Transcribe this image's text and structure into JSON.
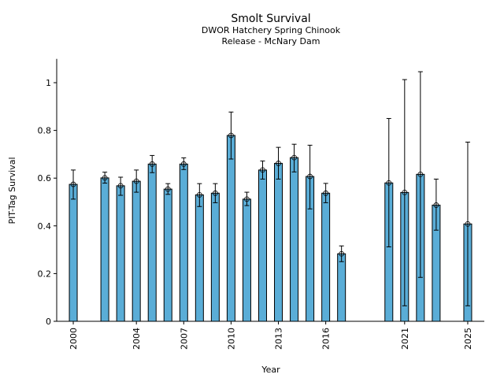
{
  "chart_data": {
    "type": "bar",
    "title": "Smolt Survival",
    "subtitle_lines": [
      "DWOR Hatchery Spring Chinook",
      "Release - McNary Dam"
    ],
    "xlabel": "Year",
    "ylabel": "PIT-Tag Survival",
    "xlim": [
      1998.95,
      2026.05
    ],
    "ylim": [
      0,
      1.1
    ],
    "yticks": [
      0,
      0.2,
      0.4,
      0.6,
      0.8,
      1
    ],
    "ytick_labels": [
      "0",
      "0.2",
      "0.4",
      "0.6",
      "0.8",
      "1"
    ],
    "xticks": [
      2000,
      2004,
      2007,
      2010,
      2013,
      2016,
      2021,
      2025
    ],
    "xtick_labels": [
      "2000",
      "2004",
      "2007",
      "2010",
      "2013",
      "2016",
      "2021",
      "2025"
    ],
    "grid": false,
    "legend": "none",
    "bar_color": "#5AADD7",
    "edge_color": "#000000",
    "series": [
      {
        "name": "PIT-Tag Survival",
        "points": [
          {
            "year": 2000,
            "value": 0.574,
            "lower": 0.512,
            "upper": 0.634
          },
          {
            "year": 2002,
            "value": 0.601,
            "lower": 0.579,
            "upper": 0.625
          },
          {
            "year": 2003,
            "value": 0.568,
            "lower": 0.528,
            "upper": 0.604
          },
          {
            "year": 2004,
            "value": 0.587,
            "lower": 0.541,
            "upper": 0.634
          },
          {
            "year": 2005,
            "value": 0.659,
            "lower": 0.623,
            "upper": 0.695
          },
          {
            "year": 2006,
            "value": 0.554,
            "lower": 0.532,
            "upper": 0.577
          },
          {
            "year": 2007,
            "value": 0.659,
            "lower": 0.636,
            "upper": 0.685
          },
          {
            "year": 2008,
            "value": 0.53,
            "lower": 0.481,
            "upper": 0.577
          },
          {
            "year": 2009,
            "value": 0.537,
            "lower": 0.497,
            "upper": 0.577
          },
          {
            "year": 2010,
            "value": 0.779,
            "lower": 0.68,
            "upper": 0.877
          },
          {
            "year": 2011,
            "value": 0.512,
            "lower": 0.485,
            "upper": 0.541
          },
          {
            "year": 2012,
            "value": 0.634,
            "lower": 0.596,
            "upper": 0.672
          },
          {
            "year": 2013,
            "value": 0.662,
            "lower": 0.596,
            "upper": 0.729
          },
          {
            "year": 2014,
            "value": 0.686,
            "lower": 0.626,
            "upper": 0.742
          },
          {
            "year": 2015,
            "value": 0.607,
            "lower": 0.471,
            "upper": 0.738
          },
          {
            "year": 2016,
            "value": 0.537,
            "lower": 0.497,
            "upper": 0.578
          },
          {
            "year": 2017,
            "value": 0.283,
            "lower": 0.25,
            "upper": 0.316
          },
          {
            "year": 2020,
            "value": 0.58,
            "lower": 0.312,
            "upper": 0.85
          },
          {
            "year": 2021,
            "value": 0.54,
            "lower": 0.065,
            "upper": 1.013
          },
          {
            "year": 2022,
            "value": 0.616,
            "lower": 0.184,
            "upper": 1.046
          },
          {
            "year": 2023,
            "value": 0.487,
            "lower": 0.382,
            "upper": 0.596
          },
          {
            "year": 2025,
            "value": 0.408,
            "lower": 0.065,
            "upper": 0.751
          }
        ]
      }
    ]
  }
}
